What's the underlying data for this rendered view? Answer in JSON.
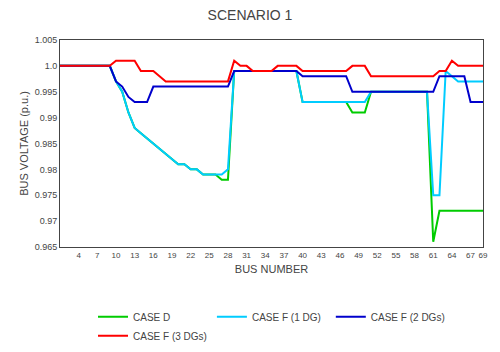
{
  "chart_data": {
    "type": "line",
    "title": "SCENARIO 1",
    "x_label": "BUS NUMBER",
    "y_label": "BUS VOLTAGE (p.u.)",
    "x": [
      1,
      2,
      3,
      4,
      5,
      6,
      7,
      8,
      9,
      10,
      11,
      12,
      13,
      14,
      15,
      16,
      17,
      18,
      19,
      20,
      21,
      22,
      23,
      24,
      25,
      26,
      27,
      28,
      29,
      30,
      31,
      32,
      33,
      34,
      35,
      36,
      37,
      38,
      39,
      40,
      41,
      42,
      43,
      44,
      45,
      46,
      47,
      48,
      49,
      50,
      51,
      52,
      53,
      54,
      55,
      56,
      57,
      58,
      59,
      60,
      61,
      62,
      63,
      64,
      65,
      66,
      67,
      68,
      69
    ],
    "series": [
      {
        "name": "CASE D",
        "color": "#00cc00",
        "values": [
          1.0,
          1.0,
          1.0,
          1.0,
          1.0,
          1.0,
          1.0,
          1.0,
          1.0,
          0.997,
          0.995,
          0.991,
          0.988,
          0.987,
          0.986,
          0.985,
          0.984,
          0.983,
          0.982,
          0.981,
          0.981,
          0.98,
          0.98,
          0.979,
          0.979,
          0.979,
          0.978,
          0.978,
          0.999,
          0.999,
          0.999,
          0.999,
          0.999,
          0.999,
          0.999,
          0.999,
          0.999,
          0.999,
          0.999,
          0.993,
          0.993,
          0.993,
          0.993,
          0.993,
          0.993,
          0.993,
          0.993,
          0.991,
          0.991,
          0.991,
          0.995,
          0.995,
          0.995,
          0.995,
          0.995,
          0.995,
          0.995,
          0.995,
          0.995,
          0.995,
          0.966,
          0.972,
          0.972,
          0.972,
          0.972,
          0.972,
          0.972,
          0.972,
          0.972
        ]
      },
      {
        "name": "CASE F (1 DG)",
        "color": "#00ccff",
        "values": [
          1.0,
          1.0,
          1.0,
          1.0,
          1.0,
          1.0,
          1.0,
          1.0,
          1.0,
          0.997,
          0.995,
          0.991,
          0.988,
          0.987,
          0.986,
          0.985,
          0.984,
          0.983,
          0.982,
          0.981,
          0.981,
          0.98,
          0.98,
          0.979,
          0.979,
          0.979,
          0.979,
          0.98,
          0.999,
          0.999,
          0.999,
          0.999,
          0.999,
          0.999,
          0.999,
          0.999,
          0.999,
          0.999,
          0.999,
          0.993,
          0.993,
          0.993,
          0.993,
          0.993,
          0.993,
          0.993,
          0.993,
          0.993,
          0.993,
          0.993,
          0.995,
          0.995,
          0.995,
          0.995,
          0.995,
          0.995,
          0.995,
          0.995,
          0.995,
          0.995,
          0.975,
          0.975,
          0.999,
          0.998,
          0.997,
          0.997,
          0.997,
          0.997,
          0.997
        ]
      },
      {
        "name": "CASE F (2 DGs)",
        "color": "#0000cc",
        "values": [
          1.0,
          1.0,
          1.0,
          1.0,
          1.0,
          1.0,
          1.0,
          1.0,
          1.0,
          0.997,
          0.996,
          0.994,
          0.993,
          0.993,
          0.993,
          0.996,
          0.996,
          0.996,
          0.996,
          0.996,
          0.996,
          0.996,
          0.996,
          0.996,
          0.996,
          0.996,
          0.996,
          0.996,
          0.999,
          0.999,
          0.999,
          0.999,
          0.999,
          0.999,
          0.999,
          0.999,
          0.999,
          0.999,
          0.999,
          0.998,
          0.998,
          0.998,
          0.998,
          0.998,
          0.998,
          0.998,
          0.998,
          0.995,
          0.995,
          0.995,
          0.995,
          0.995,
          0.995,
          0.995,
          0.995,
          0.995,
          0.995,
          0.995,
          0.995,
          0.995,
          0.995,
          0.998,
          0.998,
          0.998,
          0.998,
          0.998,
          0.993,
          0.993,
          0.993
        ]
      },
      {
        "name": "CASE F (3 DGs)",
        "color": "#ff0000",
        "values": [
          1.0,
          1.0,
          1.0,
          1.0,
          1.0,
          1.0,
          1.0,
          1.0,
          1.0,
          1.001,
          1.001,
          1.001,
          1.001,
          0.999,
          0.999,
          0.999,
          0.998,
          0.997,
          0.997,
          0.997,
          0.997,
          0.997,
          0.997,
          0.997,
          0.997,
          0.997,
          0.997,
          0.997,
          1.001,
          1.0,
          1.0,
          0.999,
          0.999,
          0.999,
          0.999,
          1.0,
          1.0,
          1.0,
          1.0,
          0.999,
          0.999,
          0.999,
          0.999,
          0.999,
          0.999,
          0.999,
          0.999,
          1.0,
          1.0,
          1.0,
          0.998,
          0.998,
          0.998,
          0.998,
          0.998,
          0.998,
          0.998,
          0.998,
          0.998,
          0.998,
          0.998,
          0.999,
          0.999,
          1.001,
          1.0,
          1.0,
          1.0,
          1.0,
          1.0
        ]
      }
    ],
    "xlim": [
      1,
      69
    ],
    "ylim": [
      0.965,
      1.005
    ],
    "xticks": [
      4,
      7,
      10,
      13,
      16,
      19,
      22,
      25,
      28,
      31,
      34,
      37,
      40,
      43,
      46,
      49,
      52,
      55,
      58,
      61,
      64,
      67,
      69
    ],
    "yticks": [
      0.965,
      0.97,
      0.975,
      0.98,
      0.985,
      0.99,
      0.995,
      {
        "value": 1.0,
        "label": "1.0"
      },
      1.005
    ],
    "grid": false,
    "legend": "bottom"
  }
}
